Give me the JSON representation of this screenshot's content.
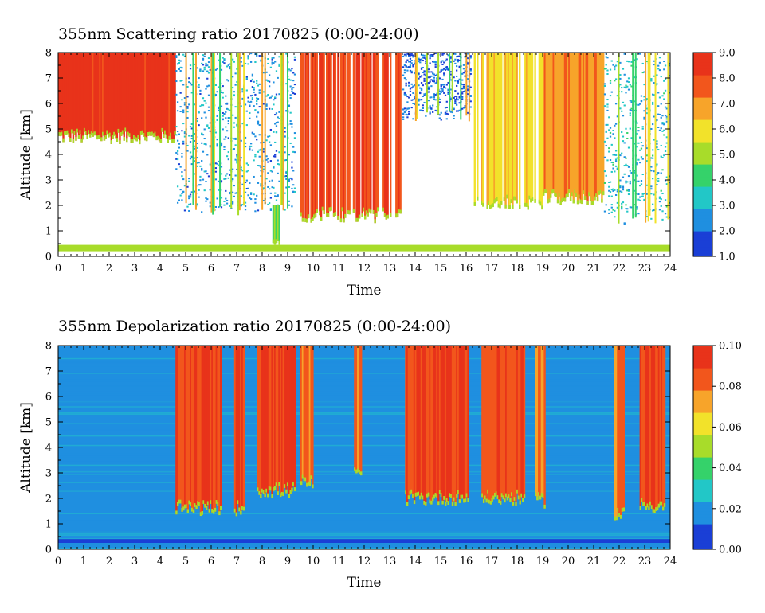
{
  "chart_data": [
    {
      "type": "heatmap",
      "title": "355nm Scattering ratio  20170825 (0:00-24:00)",
      "xlabel": "Time",
      "ylabel": "Altitude [km]",
      "xlim": [
        0,
        24
      ],
      "ylim": [
        0,
        8
      ],
      "x_ticks": [
        "0",
        "1",
        "2",
        "3",
        "4",
        "5",
        "6",
        "7",
        "8",
        "9",
        "10",
        "11",
        "12",
        "13",
        "14",
        "15",
        "16",
        "17",
        "18",
        "19",
        "20",
        "21",
        "22",
        "23",
        "24"
      ],
      "y_ticks": [
        "0",
        "1",
        "2",
        "3",
        "4",
        "5",
        "6",
        "7",
        "8"
      ],
      "colorbar": {
        "min": 1.0,
        "max": 9.0,
        "ticks": [
          "1.0",
          "2.0",
          "3.0",
          "4.0",
          "5.0",
          "6.0",
          "7.0",
          "8.0",
          "9.0"
        ],
        "colormap": [
          "#1a3fd6",
          "#1f8fe0",
          "#22c7c7",
          "#35d26a",
          "#a8dc2a",
          "#f2e22a",
          "#f7a42a",
          "#f2561c",
          "#e8331a"
        ]
      },
      "features": [
        {
          "t_start": 0.0,
          "t_end": 4.6,
          "alt_base_km": 4.6,
          "alt_top_km": 8.0,
          "value": 8.5
        },
        {
          "t_start": 4.6,
          "t_end": 9.3,
          "alt_base_km": 1.8,
          "alt_top_km": 8.0,
          "value": 2.5,
          "pattern": "streaks"
        },
        {
          "t_start": 8.4,
          "t_end": 8.7,
          "alt_base_km": 0.3,
          "alt_top_km": 2.0,
          "value": 4.5
        },
        {
          "t_start": 9.5,
          "t_end": 13.5,
          "alt_base_km": 1.5,
          "alt_top_km": 8.0,
          "value": 8.0,
          "pattern": "columns"
        },
        {
          "t_start": 13.5,
          "t_end": 16.2,
          "alt_base_km": 5.5,
          "alt_top_km": 8.0,
          "value": 1.8,
          "pattern": "streaks"
        },
        {
          "t_start": 16.3,
          "t_end": 19.0,
          "alt_base_km": 2.0,
          "alt_top_km": 8.0,
          "value": 6.0,
          "pattern": "columns"
        },
        {
          "t_start": 19.0,
          "t_end": 21.4,
          "alt_base_km": 2.2,
          "alt_top_km": 8.0,
          "value": 7.0
        },
        {
          "t_start": 21.4,
          "t_end": 24.0,
          "alt_base_km": 1.4,
          "alt_top_km": 8.0,
          "value": 3.0,
          "pattern": "streaks"
        },
        {
          "t_start": 0.0,
          "t_end": 24.0,
          "alt_base_km": 0.2,
          "alt_top_km": 0.45,
          "value": 5.0,
          "pattern": "near-surface band"
        }
      ]
    },
    {
      "type": "heatmap",
      "title": "355nm Depolarization ratio  20170825 (0:00-24:00)",
      "xlabel": "Time",
      "ylabel": "Altitude [km]",
      "xlim": [
        0,
        24
      ],
      "ylim": [
        0,
        8
      ],
      "x_ticks": [
        "0",
        "1",
        "2",
        "3",
        "4",
        "5",
        "6",
        "7",
        "8",
        "9",
        "10",
        "11",
        "12",
        "13",
        "14",
        "15",
        "16",
        "17",
        "18",
        "19",
        "20",
        "21",
        "22",
        "23",
        "24"
      ],
      "y_ticks": [
        "0",
        "1",
        "2",
        "3",
        "4",
        "5",
        "6",
        "7",
        "8"
      ],
      "colorbar": {
        "min": 0.0,
        "max": 0.1,
        "ticks": [
          "0.00",
          "0.02",
          "0.04",
          "0.06",
          "0.08",
          "0.10"
        ],
        "colormap": [
          "#1a3fd6",
          "#1f8fe0",
          "#22c7c7",
          "#35d26a",
          "#a8dc2a",
          "#f2e22a",
          "#f7a42a",
          "#f2561c",
          "#e8331a"
        ]
      },
      "background_value": 0.02,
      "features": [
        {
          "t_start": 4.6,
          "t_end": 6.4,
          "alt_base_km": 1.5,
          "alt_top_km": 8.0,
          "value": 0.09
        },
        {
          "t_start": 6.9,
          "t_end": 7.3,
          "alt_base_km": 1.5,
          "alt_top_km": 8.0,
          "value": 0.09
        },
        {
          "t_start": 7.8,
          "t_end": 9.3,
          "alt_base_km": 2.2,
          "alt_top_km": 8.0,
          "value": 0.09
        },
        {
          "t_start": 9.5,
          "t_end": 10.0,
          "alt_base_km": 2.5,
          "alt_top_km": 8.0,
          "value": 0.08
        },
        {
          "t_start": 11.6,
          "t_end": 11.9,
          "alt_base_km": 2.8,
          "alt_top_km": 8.0,
          "value": 0.08
        },
        {
          "t_start": 13.6,
          "t_end": 16.1,
          "alt_base_km": 1.9,
          "alt_top_km": 8.0,
          "value": 0.09
        },
        {
          "t_start": 16.6,
          "t_end": 18.3,
          "alt_base_km": 1.9,
          "alt_top_km": 8.0,
          "value": 0.085
        },
        {
          "t_start": 18.7,
          "t_end": 19.1,
          "alt_base_km": 1.8,
          "alt_top_km": 8.0,
          "value": 0.08
        },
        {
          "t_start": 21.8,
          "t_end": 22.2,
          "alt_base_km": 1.3,
          "alt_top_km": 8.0,
          "value": 0.08
        },
        {
          "t_start": 22.8,
          "t_end": 23.8,
          "alt_base_km": 1.6,
          "alt_top_km": 8.0,
          "value": 0.09
        },
        {
          "t_start": 0.0,
          "t_end": 24.0,
          "alt_base_km": 0.25,
          "alt_top_km": 0.4,
          "value": 0.008,
          "pattern": "near-surface band"
        }
      ]
    }
  ]
}
